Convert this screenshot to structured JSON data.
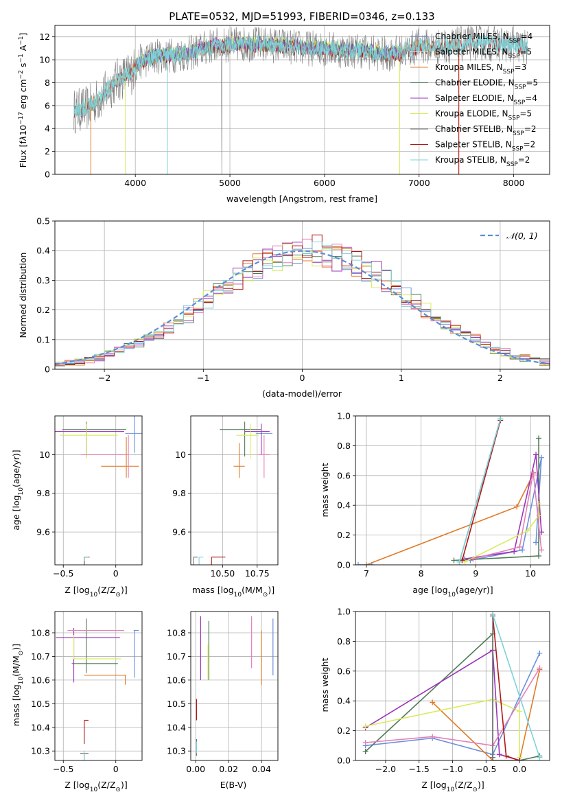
{
  "title": "PLATE=0532, MJD=51993, FIBERID=0346, z=0.133",
  "colors": {
    "Chabrier MILES": "#6a8fdc",
    "Salpeter MILES": "#e0e0e0",
    "Kroupa MILES": "#e07b28",
    "Chabrier ELODIE": "#4f7a58",
    "Salpeter ELODIE": "#9a35b8",
    "Kroupa ELODIE": "#d8ec5a",
    "Chabrier STELIB": "#707070",
    "Salpeter STELIB": "#b01818",
    "Kroupa STELIB": "#7dd3d8",
    "gaussian": "#5b8dd6",
    "pink": "#e47fb8"
  },
  "legend_spectrum": [
    {
      "name": "Chabrier MILES, N",
      "sub": "SSP",
      "tail": "=4",
      "color": "#6a8fdc"
    },
    {
      "name": "Salpeter MILES, N",
      "sub": "SSP",
      "tail": "=5",
      "color": "#e0e0e0"
    },
    {
      "name": "Kroupa MILES, N",
      "sub": "SSP",
      "tail": "=3",
      "color": "#e07b28"
    },
    {
      "name": "Chabrier ELODIE, N",
      "sub": "SSP",
      "tail": "=5",
      "color": "#4f7a58"
    },
    {
      "name": "Salpeter ELODIE, N",
      "sub": "SSP",
      "tail": "=4",
      "color": "#9a35b8"
    },
    {
      "name": "Kroupa ELODIE, N",
      "sub": "SSP",
      "tail": "=5",
      "color": "#d8ec5a"
    },
    {
      "name": "Chabrier STELIB, N",
      "sub": "SSP",
      "tail": "=2",
      "color": "#707070"
    },
    {
      "name": "Salpeter STELIB, N",
      "sub": "SSP",
      "tail": "=2",
      "color": "#b01818"
    },
    {
      "name": "Kroupa STELIB, N",
      "sub": "SSP",
      "tail": "=2",
      "color": "#7dd3d8"
    }
  ],
  "chart_data": [
    {
      "id": "spectrum",
      "type": "line",
      "xlabel": "wavelength [Angstrom, rest frame]",
      "ylabel_main": "Flux [f",
      "ylabel_rest": "10",
      "ylabel_exp": "−17",
      "ylabel_units": " erg cm",
      "ylabel_exp2": "−2",
      "ylabel_s": " s",
      "ylabel_exp3": "−1",
      "ylabel_A": " A",
      "ylabel_exp4": "−1",
      "ylabel_end": "]",
      "xlim": [
        3150,
        8380
      ],
      "ylim": [
        0,
        13
      ],
      "xticks": [
        4000,
        5000,
        6000,
        7000,
        8000
      ],
      "yticks": [
        0,
        2,
        4,
        6,
        8,
        10,
        12
      ],
      "continuum_x": [
        3350,
        3500,
        3650,
        3800,
        3950,
        4050,
        4200,
        4400,
        4600,
        4800,
        5000,
        5200,
        5400,
        5600,
        5800,
        6000,
        6200,
        6400,
        6600,
        6800,
        7000,
        7200,
        7400,
        7600,
        7800,
        8000,
        8150
      ],
      "continuum_y": [
        5.5,
        5.8,
        6.8,
        8.2,
        8.8,
        9.8,
        10.3,
        10.4,
        10.6,
        11.2,
        11.3,
        11.4,
        11.3,
        11.2,
        11.0,
        11.0,
        10.8,
        10.8,
        10.5,
        10.6,
        11.2,
        11.1,
        11.3,
        11.5,
        11.4,
        11.3,
        11.0
      ]
    },
    {
      "id": "residuals",
      "type": "histogram",
      "xlabel": "(data-model)/error",
      "ylabel": "Normed distribution",
      "xlim": [
        -2.5,
        2.5
      ],
      "ylim": [
        0,
        0.5
      ],
      "xticks": [
        -2,
        -1,
        0,
        1,
        2
      ],
      "yticks": [
        0.0,
        0.1,
        0.2,
        0.3,
        0.4,
        0.5
      ],
      "legend": "𝒩(0, 1)",
      "bin_width": 0.1,
      "bin_start": -2.5
    },
    {
      "id": "age_vs_Z",
      "type": "errorbar",
      "xlabel": "Z [log",
      "xlabel_sub": "10",
      "xlabel_tail": "(Z/Z",
      "xlabel_sun": "⊙",
      "xlabel_end": ")]",
      "ylabel": "age  [log",
      "ylabel_sub": "10",
      "ylabel_tail": "(age/yr)]",
      "xlim": [
        -0.58,
        0.25
      ],
      "ylim": [
        9.43,
        10.2
      ],
      "xticks": [
        -0.5,
        0.0
      ],
      "yticks": [
        9.6,
        9.8,
        10.0
      ],
      "points": [
        {
          "x": 0.18,
          "y": 10.11,
          "xerr": [
            0.09,
            0.15
          ],
          "yerr": [
            0.1,
            0.14
          ],
          "series": "Chabrier MILES"
        },
        {
          "x": 0.1,
          "y": 9.94,
          "xerr": [
            0.24,
            0.12
          ],
          "yerr": [
            0.06,
            0.15
          ],
          "series": "Kroupa MILES"
        },
        {
          "x": -0.28,
          "y": 10.13,
          "xerr": [
            0.23,
            0.38
          ],
          "yerr": [
            0.14,
            0.04
          ],
          "series": "Chabrier ELODIE"
        },
        {
          "x": -0.28,
          "y": 10.12,
          "xerr": [
            0.38,
            0.36
          ],
          "yerr": [
            0.12,
            0.04
          ],
          "series": "Salpeter ELODIE"
        },
        {
          "x": -0.28,
          "y": 10.1,
          "xerr": [
            0.25,
            0.3
          ],
          "yerr": [
            0.12,
            0.06
          ],
          "series": "Kroupa ELODIE"
        },
        {
          "x": 0.12,
          "y": 10.0,
          "xerr": [
            0.45,
            0.0
          ],
          "yerr": [
            0.12,
            0.1
          ],
          "series": "pink"
        },
        {
          "x": -0.3,
          "y": 9.47,
          "xerr": [
            0.0,
            0.05
          ],
          "yerr": [
            0.13,
            0.0
          ],
          "series": "Salpeter STELIB"
        },
        {
          "x": -0.3,
          "y": 9.47,
          "xerr": [
            0.0,
            0.02
          ],
          "yerr": [
            0.05,
            0.0
          ],
          "series": "Chabrier STELIB"
        },
        {
          "x": -0.3,
          "y": 9.47,
          "xerr": [
            0.0,
            0.04
          ],
          "yerr": [
            0.02,
            0.0
          ],
          "series": "Kroupa STELIB"
        }
      ]
    },
    {
      "id": "age_vs_mass",
      "type": "errorbar",
      "xlabel": "mass [log",
      "xlabel_sub": "10",
      "xlabel_tail": "(M/M",
      "xlabel_sun": "⊙",
      "xlabel_end": ")]",
      "xlim": [
        10.27,
        10.9
      ],
      "ylim": [
        9.43,
        10.2
      ],
      "xticks": [
        10.5,
        10.75
      ],
      "xticklabels": [
        "10.50",
        "10.75"
      ],
      "yticks": [
        9.6,
        9.8,
        10.0
      ],
      "points": [
        {
          "x": 10.8,
          "y": 10.11,
          "xerr": [
            0.06,
            0.06
          ],
          "yerr": [
            0.0,
            0.0
          ],
          "series": "Chabrier MILES"
        },
        {
          "x": 10.62,
          "y": 9.94,
          "xerr": [
            0.04,
            0.04
          ],
          "yerr": [
            0.06,
            0.12
          ],
          "series": "Kroupa MILES"
        },
        {
          "x": 10.66,
          "y": 10.13,
          "xerr": [
            0.18,
            0.12
          ],
          "yerr": [
            0.14,
            0.04
          ],
          "series": "Chabrier ELODIE"
        },
        {
          "x": 10.78,
          "y": 10.12,
          "xerr": [
            0.12,
            0.06
          ],
          "yerr": [
            0.12,
            0.04
          ],
          "series": "Salpeter ELODIE"
        },
        {
          "x": 10.7,
          "y": 10.1,
          "xerr": [
            0.1,
            0.06
          ],
          "yerr": [
            0.12,
            0.06
          ],
          "series": "Kroupa ELODIE"
        },
        {
          "x": 10.8,
          "y": 10.0,
          "xerr": [
            0.04,
            0.04
          ],
          "yerr": [
            0.12,
            0.1
          ],
          "series": "pink"
        },
        {
          "x": 10.42,
          "y": 9.47,
          "xerr": [
            0.0,
            0.1
          ],
          "yerr": [
            0.13,
            0.0
          ],
          "series": "Salpeter STELIB"
        },
        {
          "x": 10.29,
          "y": 9.47,
          "xerr": [
            0.0,
            0.03
          ],
          "yerr": [
            0.11,
            0.0
          ],
          "series": "Chabrier STELIB"
        },
        {
          "x": 10.33,
          "y": 9.47,
          "xerr": [
            0.0,
            0.03
          ],
          "yerr": [
            0.08,
            0.0
          ],
          "series": "Kroupa STELIB"
        }
      ]
    },
    {
      "id": "weight_vs_age",
      "type": "line",
      "xlabel": "age  [log",
      "xlabel_sub": "10",
      "xlabel_tail": "(age/yr)]",
      "ylabel": "mass weight",
      "xlim": [
        6.8,
        10.35
      ],
      "ylim": [
        0,
        1
      ],
      "xticks": [
        7,
        8,
        9,
        10
      ],
      "yticks": [
        0.0,
        0.2,
        0.4,
        0.6,
        0.8,
        1.0
      ],
      "yticklabels": [
        "0.0",
        "0.2",
        "0.4",
        "0.6",
        "0.8",
        "1.0"
      ],
      "series": [
        {
          "name": "Chabrier MILES",
          "x": [
            8.9,
            9.85,
            10.2,
            10.1
          ],
          "y": [
            0.03,
            0.1,
            0.72,
            0.15
          ]
        },
        {
          "name": "Kroupa MILES",
          "x": [
            7.0,
            9.75,
            10.05
          ],
          "y": [
            0.0,
            0.39,
            0.61
          ]
        },
        {
          "name": "Chabrier ELODIE",
          "x": [
            8.6,
            10.15,
            10.15
          ],
          "y": [
            0.03,
            0.06,
            0.85
          ]
        },
        {
          "name": "Salpeter ELODIE",
          "x": [
            8.8,
            9.7,
            10.1,
            10.2
          ],
          "y": [
            0.04,
            0.09,
            0.74,
            0.22
          ]
        },
        {
          "name": "Kroupa ELODIE",
          "x": [
            8.8,
            9.95,
            10.15,
            10.15
          ],
          "y": [
            0.02,
            0.23,
            0.33,
            0.41
          ]
        },
        {
          "name": "pink",
          "x": [
            8.95,
            9.8,
            10.05,
            10.2
          ],
          "y": [
            0.04,
            0.12,
            0.62,
            0.1
          ]
        },
        {
          "name": "Salpeter STELIB",
          "x": [
            8.75,
            9.45
          ],
          "y": [
            0.03,
            0.97
          ]
        },
        {
          "name": "Chabrier STELIB",
          "x": [
            8.7,
            9.45
          ],
          "y": [
            0.02,
            0.98
          ]
        },
        {
          "name": "Kroupa STELIB",
          "x": [
            8.7,
            9.45
          ],
          "y": [
            0.02,
            0.98
          ]
        },
        {
          "name": "Chabrier MILES",
          "x": [
            6.85,
            7.1
          ],
          "y": [
            0.0,
            0.0
          ]
        }
      ]
    },
    {
      "id": "mass_vs_Z",
      "type": "errorbar",
      "xlabel": "Z [log",
      "xlabel_sub": "10",
      "xlabel_tail": "(Z/Z",
      "xlabel_sun": "⊙",
      "xlabel_end": ")]",
      "ylabel": "mass [log",
      "ylabel_sub": "10",
      "ylabel_tail": "(M/M",
      "ylabel_sun": "⊙",
      "ylabel_end": ")]",
      "xlim": [
        -0.58,
        0.25
      ],
      "ylim": [
        10.26,
        10.89
      ],
      "xticks": [
        -0.5,
        0.0
      ],
      "yticks": [
        10.3,
        10.4,
        10.5,
        10.6,
        10.7,
        10.8
      ],
      "points": [
        {
          "x": 0.18,
          "y": 10.81,
          "xerr": [
            0.01,
            0.04
          ],
          "yerr": [
            0.2,
            0.0
          ],
          "series": "Chabrier MILES"
        },
        {
          "x": -0.3,
          "y": 10.62,
          "xerr": [
            0.0,
            0.4
          ],
          "yerr": [
            0.0,
            0.0
          ],
          "series": "Kroupa MILES"
        },
        {
          "x": 0.09,
          "y": 10.62,
          "xerr": [
            0.0,
            0.0
          ],
          "yerr": [
            0.04,
            0.0
          ],
          "series": "Kroupa MILES"
        },
        {
          "x": -0.28,
          "y": 10.67,
          "xerr": [
            0.14,
            0.3
          ],
          "yerr": [
            0.04,
            0.19
          ],
          "series": "Chabrier ELODIE"
        },
        {
          "x": -0.4,
          "y": 10.78,
          "xerr": [
            0.17,
            0.44
          ],
          "yerr": [
            0.19,
            0.04
          ],
          "series": "Salpeter ELODIE"
        },
        {
          "x": -0.4,
          "y": 10.69,
          "xerr": [
            0.0,
            0.45
          ],
          "yerr": [
            0.0,
            0.1
          ],
          "series": "Kroupa ELODIE"
        },
        {
          "x": -0.28,
          "y": 10.81,
          "xerr": [
            0.18,
            0.36
          ],
          "yerr": [
            0.0,
            0.0
          ],
          "series": "pink"
        },
        {
          "x": -0.3,
          "y": 10.43,
          "xerr": [
            0.0,
            0.04
          ],
          "yerr": [
            0.1,
            0.0
          ],
          "series": "Salpeter STELIB"
        },
        {
          "x": -0.3,
          "y": 10.29,
          "xerr": [
            0.04,
            0.04
          ],
          "yerr": [
            0.06,
            0.0
          ],
          "series": "Chabrier STELIB"
        },
        {
          "x": -0.3,
          "y": 10.3,
          "xerr": [
            0.0,
            0.0
          ],
          "yerr": [
            0.05,
            0.0
          ],
          "series": "Kroupa STELIB"
        }
      ]
    },
    {
      "id": "mass_vs_EBV",
      "type": "errorbar",
      "xlabel": "E(B-V)",
      "xlim": [
        -0.003,
        0.05
      ],
      "ylim": [
        10.26,
        10.89
      ],
      "xticks": [
        0.0,
        0.02,
        0.04
      ],
      "xticklabels": [
        "0.00",
        "0.02",
        "0.04"
      ],
      "yticks": [
        10.3,
        10.4,
        10.5,
        10.6,
        10.7,
        10.8
      ],
      "vlines": [
        {
          "x": 0.047,
          "y0": 10.62,
          "y1": 10.86,
          "series": "Chabrier MILES"
        },
        {
          "x": 0.04,
          "y0": 10.58,
          "y1": 10.81,
          "series": "Kroupa MILES"
        },
        {
          "x": 0.008,
          "y0": 10.6,
          "y1": 10.85,
          "series": "Chabrier ELODIE"
        },
        {
          "x": 0.003,
          "y0": 10.6,
          "y1": 10.87,
          "series": "Salpeter ELODIE"
        },
        {
          "x": 0.0075,
          "y0": 10.6,
          "y1": 10.75,
          "series": "Kroupa ELODIE"
        },
        {
          "x": 0.034,
          "y0": 10.65,
          "y1": 10.87,
          "series": "pink"
        },
        {
          "x": 0.0005,
          "y0": 10.43,
          "y1": 10.52,
          "series": "Salpeter STELIB"
        },
        {
          "x": 0.0005,
          "y0": 10.28,
          "y1": 10.35,
          "series": "Chabrier STELIB"
        },
        {
          "x": 0.0005,
          "y0": 10.29,
          "y1": 10.34,
          "series": "Kroupa STELIB"
        }
      ]
    },
    {
      "id": "weight_vs_Z",
      "type": "line",
      "xlabel": "Z [log",
      "xlabel_sub": "10",
      "xlabel_tail": "(Z/Z",
      "xlabel_sun": "⊙",
      "xlabel_end": ")]",
      "ylabel": "mass weight",
      "xlim": [
        -2.45,
        0.45
      ],
      "ylim": [
        0,
        1
      ],
      "xticks": [
        -2.0,
        -1.5,
        -1.0,
        -0.5,
        0.0
      ],
      "xticklabels": [
        "−2.0",
        "−1.5",
        "−1.0",
        "−0.5",
        "0.0"
      ],
      "yticks": [
        0.0,
        0.2,
        0.4,
        0.6,
        0.8,
        1.0
      ],
      "yticklabels": [
        "0.0",
        "0.2",
        "0.4",
        "0.6",
        "0.8",
        "1.0"
      ],
      "series": [
        {
          "name": "Chabrier MILES",
          "x": [
            -2.3,
            -1.3,
            -0.4,
            0.3
          ],
          "y": [
            0.1,
            0.15,
            0.04,
            0.72
          ]
        },
        {
          "name": "Kroupa MILES",
          "x": [
            -1.3,
            -0.4,
            0.0,
            0.3
          ],
          "y": [
            0.39,
            0.0,
            0.0,
            0.61
          ]
        },
        {
          "name": "Chabrier ELODIE",
          "x": [
            -2.3,
            -0.4,
            -0.4,
            0.0,
            0.3
          ],
          "y": [
            0.06,
            0.85,
            0.0,
            0.0,
            0.03
          ]
        },
        {
          "name": "Salpeter ELODIE",
          "x": [
            -2.3,
            -0.4,
            -0.3,
            0.0
          ],
          "y": [
            0.22,
            0.74,
            0.04,
            0.0
          ]
        },
        {
          "name": "Kroupa ELODIE",
          "x": [
            -2.3,
            -0.4,
            0.0,
            0.0
          ],
          "y": [
            0.23,
            0.41,
            0.33,
            0.02
          ]
        },
        {
          "name": "pink",
          "x": [
            -2.3,
            -1.3,
            -0.4,
            0.3
          ],
          "y": [
            0.12,
            0.16,
            0.1,
            0.62
          ]
        },
        {
          "name": "Salpeter STELIB",
          "x": [
            -0.4,
            -0.2,
            0.0
          ],
          "y": [
            0.97,
            0.03,
            0.0
          ]
        },
        {
          "name": "Chabrier STELIB",
          "x": [
            -0.4,
            -0.4
          ],
          "y": [
            0.98,
            0.02
          ]
        },
        {
          "name": "Kroupa STELIB",
          "x": [
            -0.4,
            0.3
          ],
          "y": [
            0.98,
            0.02
          ]
        }
      ]
    }
  ]
}
